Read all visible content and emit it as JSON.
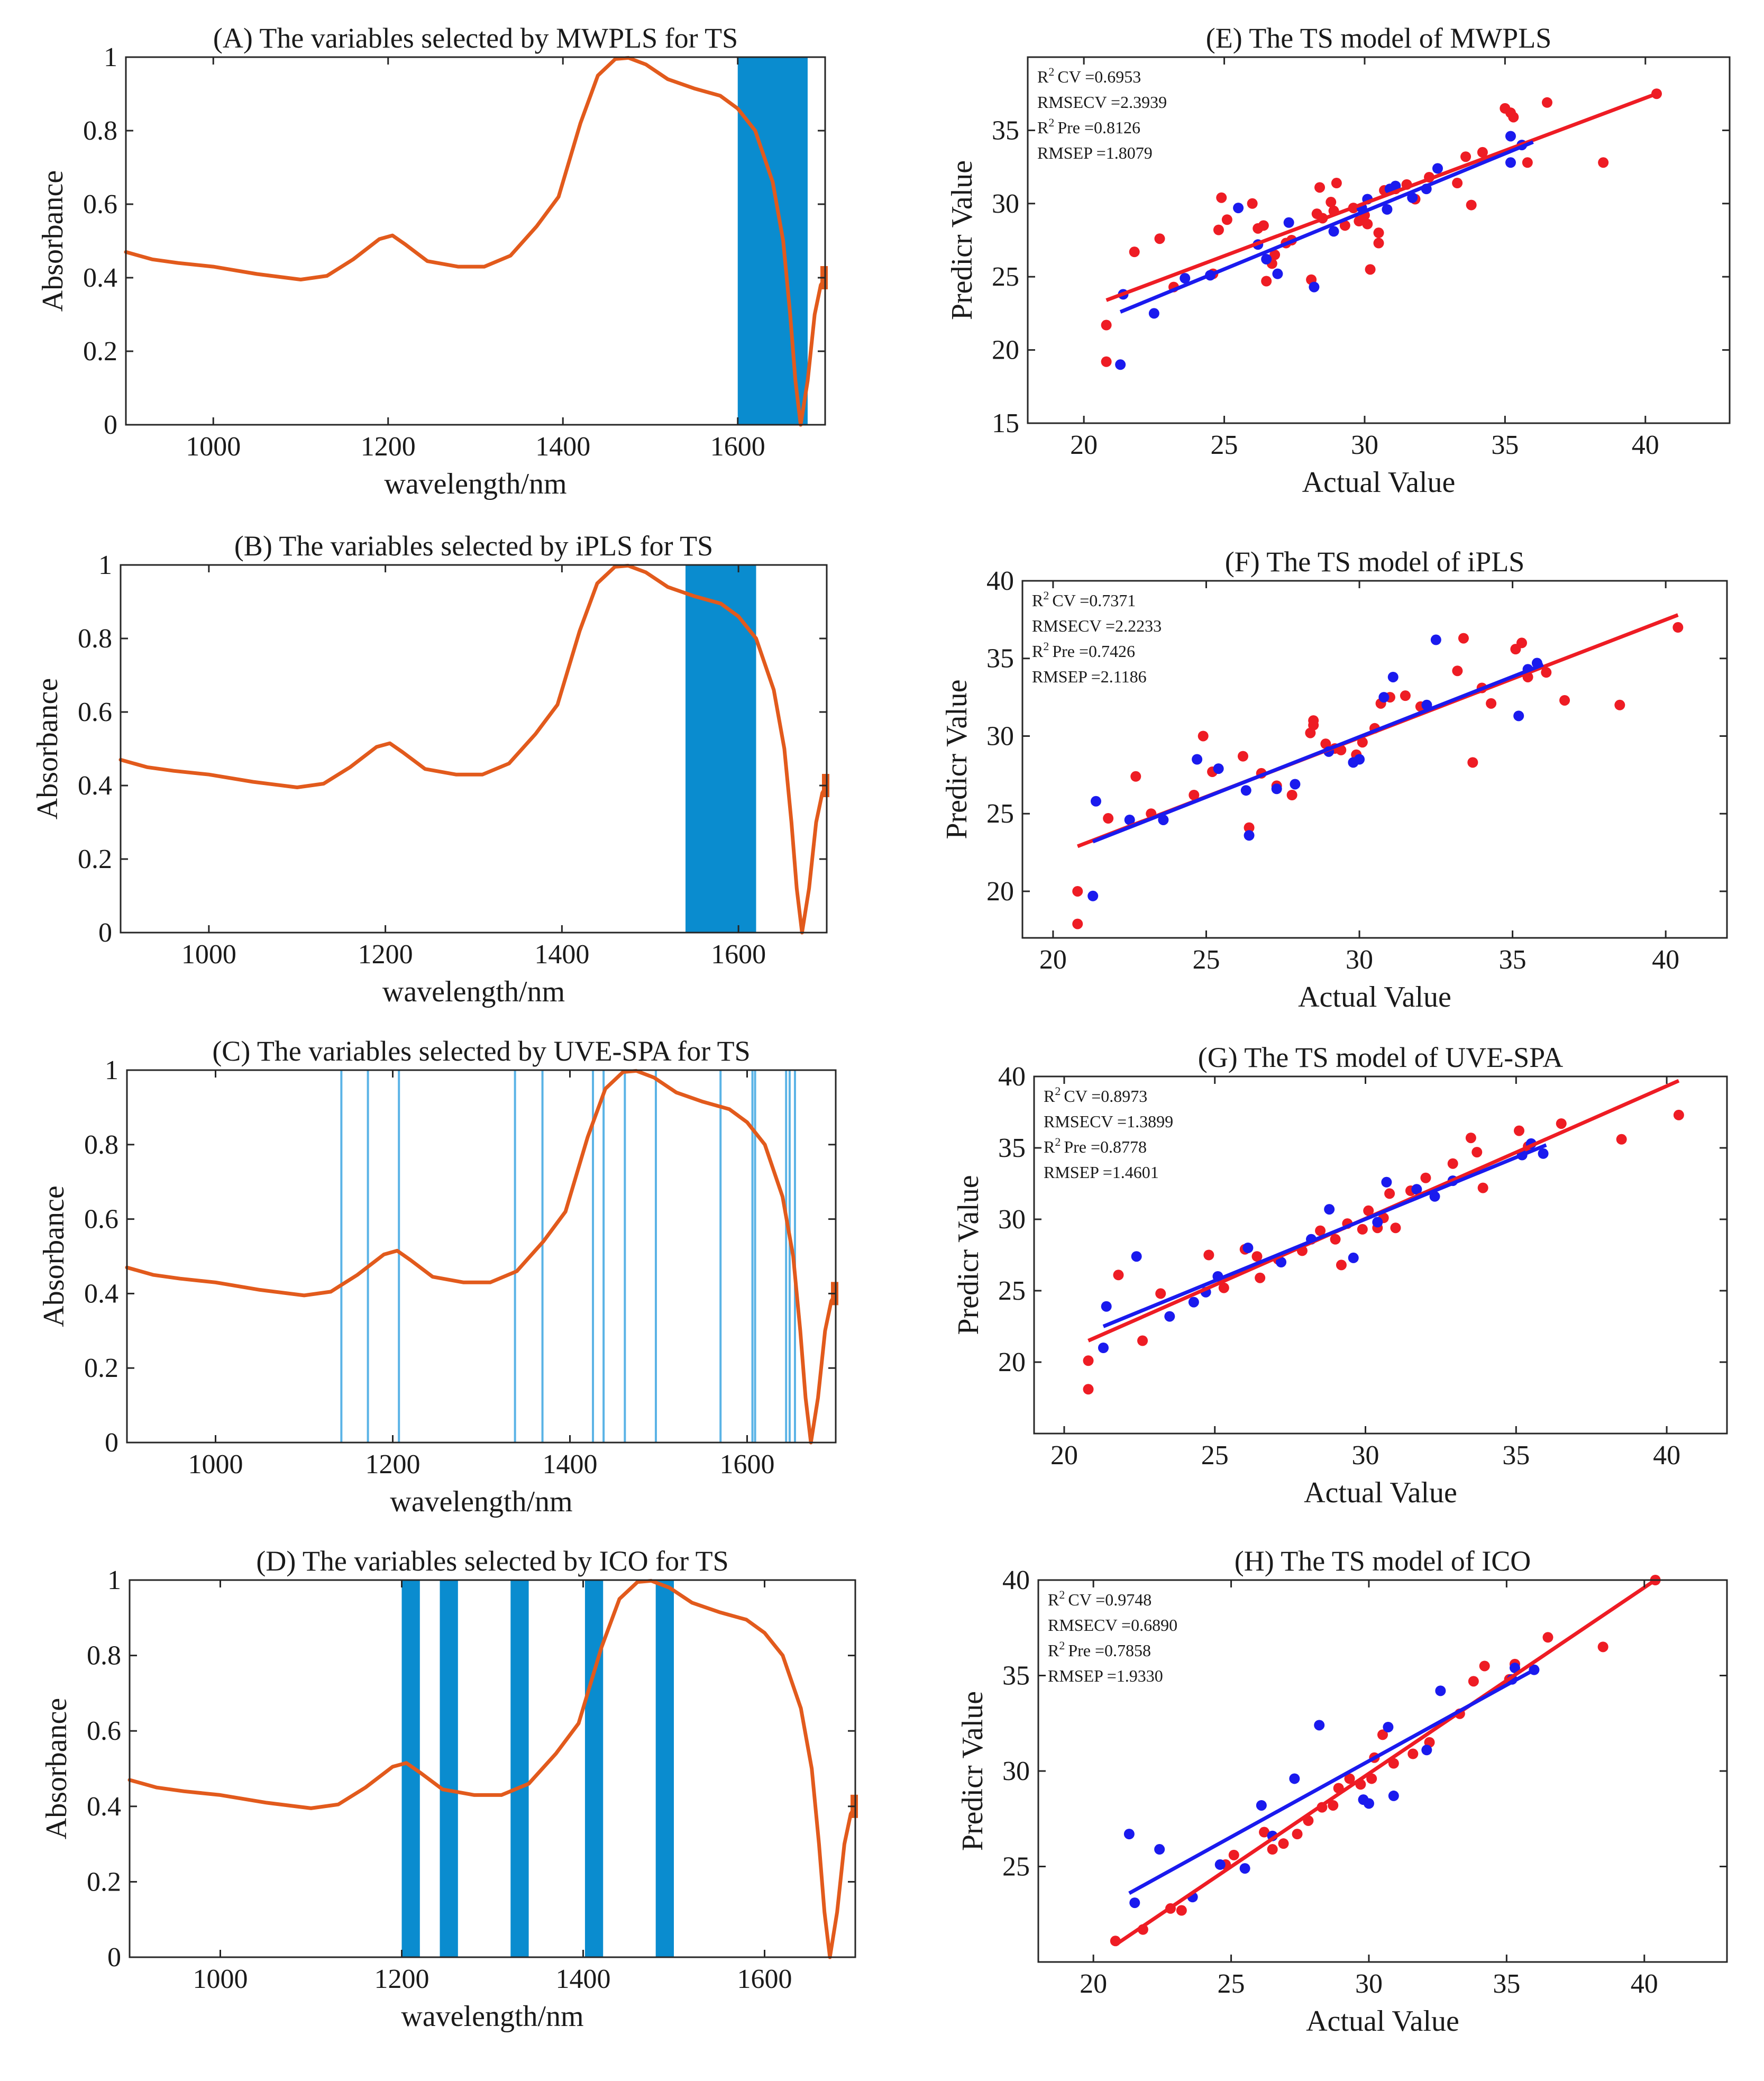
{
  "chart_data": [
    {
      "id": "A",
      "type": "line",
      "title": "(A) The variables selected by MWPLS for TS",
      "xlabel": "wavelength/nm",
      "ylabel": "Absorbance",
      "xlim": [
        900,
        1700
      ],
      "ylim": [
        0,
        1
      ],
      "xticks": [
        1000,
        1200,
        1400,
        1600
      ],
      "yticks": [
        0,
        0.2,
        0.4,
        0.6,
        0.8,
        1
      ],
      "ytick_labels": [
        "0",
        "0.2",
        "0.4",
        "0.6",
        "0.8",
        "1"
      ],
      "bands": [
        [
          1600,
          1680
        ]
      ],
      "lines": []
    },
    {
      "id": "B",
      "type": "line",
      "title": "(B) The variables selected by iPLS for TS",
      "xlabel": "wavelength/nm",
      "ylabel": "Absorbance",
      "xlim": [
        900,
        1700
      ],
      "ylim": [
        0,
        1
      ],
      "xticks": [
        1000,
        1200,
        1400,
        1600
      ],
      "yticks": [
        0,
        0.2,
        0.4,
        0.6,
        0.8,
        1
      ],
      "ytick_labels": [
        "0",
        "0.2",
        "0.4",
        "0.6",
        "0.8",
        "1"
      ],
      "bands": [
        [
          1540,
          1620
        ]
      ],
      "lines": []
    },
    {
      "id": "C",
      "type": "line",
      "title": "(C) The variables selected by UVE-SPA for TS",
      "xlabel": "wavelength/nm",
      "ylabel": "Absorbance",
      "xlim": [
        900,
        1700
      ],
      "ylim": [
        0,
        1
      ],
      "xticks": [
        1000,
        1200,
        1400,
        1600
      ],
      "yticks": [
        0,
        0.2,
        0.4,
        0.6,
        0.8,
        1
      ],
      "ytick_labels": [
        "0",
        "0.2",
        "0.4",
        "0.6",
        "0.8",
        "1"
      ],
      "bands": [],
      "lines": [
        1142,
        1172,
        1207,
        1338,
        1369,
        1426,
        1438,
        1462,
        1497,
        1570,
        1606,
        1609,
        1644,
        1648,
        1654
      ]
    },
    {
      "id": "D",
      "type": "line",
      "title": "(D) The variables selected by ICO for TS",
      "xlabel": "wavelength/nm",
      "ylabel": "Absorbance",
      "xlim": [
        900,
        1700
      ],
      "ylim": [
        0,
        1
      ],
      "xticks": [
        1000,
        1200,
        1400,
        1600
      ],
      "yticks": [
        0,
        0.2,
        0.4,
        0.6,
        0.8,
        1
      ],
      "ytick_labels": [
        "0",
        "0.2",
        "0.4",
        "0.6",
        "0.8",
        "1"
      ],
      "bands": [
        [
          1200,
          1220
        ],
        [
          1242,
          1262
        ],
        [
          1320,
          1340
        ],
        [
          1402,
          1422
        ],
        [
          1480,
          1500
        ]
      ],
      "lines": []
    },
    {
      "id": "E",
      "type": "scatter",
      "title": "(E) The TS model of MWPLS",
      "xlabel": "Actual Value",
      "ylabel": "Predicr Value",
      "xlim": [
        18,
        43
      ],
      "ylim": [
        15,
        40
      ],
      "xticks": [
        20,
        25,
        30,
        35,
        40
      ],
      "yticks": [
        15,
        20,
        25,
        30,
        35
      ],
      "stats": [
        "CV =0.6953",
        "RMSECV =2.3939",
        "Pre =0.8126",
        "RMSEP =1.8079"
      ],
      "fit_red": [
        [
          20.8,
          23.4
        ],
        [
          40.4,
          37.5
        ]
      ],
      "fit_blue": [
        [
          21.3,
          22.6
        ],
        [
          36,
          34.2
        ]
      ],
      "red": [
        [
          20.8,
          21.7
        ],
        [
          20.8,
          19.2
        ],
        [
          21.8,
          26.7
        ],
        [
          22.7,
          27.6
        ],
        [
          23.2,
          24.3
        ],
        [
          24.6,
          25.2
        ],
        [
          24.8,
          28.2
        ],
        [
          24.9,
          30.4
        ],
        [
          25.1,
          28.9
        ],
        [
          26,
          30
        ],
        [
          26.2,
          28.3
        ],
        [
          26.4,
          28.5
        ],
        [
          26.5,
          24.7
        ],
        [
          26.7,
          25.9
        ],
        [
          26.8,
          26.5
        ],
        [
          27.2,
          27.3
        ],
        [
          27.4,
          27.5
        ],
        [
          28.1,
          24.8
        ],
        [
          28.3,
          29.3
        ],
        [
          28.4,
          31.1
        ],
        [
          28.5,
          29
        ],
        [
          28.8,
          30.1
        ],
        [
          28.9,
          29.5
        ],
        [
          29,
          31.4
        ],
        [
          29.3,
          28.5
        ],
        [
          29.6,
          29.7
        ],
        [
          29.8,
          28.8
        ],
        [
          30,
          29.2
        ],
        [
          30.1,
          28.6
        ],
        [
          30.2,
          25.5
        ],
        [
          30.5,
          28
        ],
        [
          30.5,
          27.3
        ],
        [
          30.7,
          30.9
        ],
        [
          31.1,
          31
        ],
        [
          31.5,
          31.3
        ],
        [
          31.8,
          30.3
        ],
        [
          32.3,
          31.8
        ],
        [
          33.3,
          31.4
        ],
        [
          33.6,
          33.2
        ],
        [
          33.8,
          29.9
        ],
        [
          34.2,
          33.5
        ],
        [
          35,
          36.5
        ],
        [
          35.2,
          36.2
        ],
        [
          35.3,
          35.9
        ],
        [
          35.8,
          32.8
        ],
        [
          36.5,
          36.9
        ],
        [
          38.5,
          32.8
        ],
        [
          40.4,
          37.5
        ]
      ],
      "blue": [
        [
          21.3,
          19
        ],
        [
          21.4,
          23.8
        ],
        [
          22.5,
          22.5
        ],
        [
          23.6,
          24.9
        ],
        [
          24.5,
          25.1
        ],
        [
          25.5,
          29.7
        ],
        [
          26.2,
          27.2
        ],
        [
          26.5,
          26.2
        ],
        [
          26.9,
          25.2
        ],
        [
          27.3,
          28.7
        ],
        [
          28.2,
          24.3
        ],
        [
          28.9,
          28.1
        ],
        [
          29.9,
          29.7
        ],
        [
          30.1,
          30.3
        ],
        [
          30.8,
          29.6
        ],
        [
          30.9,
          31
        ],
        [
          31.1,
          31.2
        ],
        [
          31.7,
          30.4
        ],
        [
          32.2,
          31
        ],
        [
          32.6,
          32.4
        ],
        [
          35.2,
          34.6
        ],
        [
          35.2,
          32.8
        ],
        [
          35.6,
          34
        ]
      ]
    },
    {
      "id": "F",
      "type": "scatter",
      "title": "(F) The TS model of iPLS",
      "xlabel": "Actual Value",
      "ylabel": "Predicr Value",
      "xlim": [
        19,
        42
      ],
      "ylim": [
        17,
        40
      ],
      "xticks": [
        20,
        25,
        30,
        35,
        40
      ],
      "yticks": [
        20,
        25,
        30,
        35,
        40
      ],
      "stats": [
        "CV =0.7371",
        "RMSECV =2.2233",
        "Pre =0.7426",
        "RMSEP =2.1186"
      ],
      "fit_red": [
        [
          20.8,
          22.9
        ],
        [
          40.4,
          37.8
        ]
      ],
      "fit_blue": [
        [
          21.3,
          23.2
        ],
        [
          36,
          34.6
        ]
      ],
      "red": [
        [
          20.8,
          20
        ],
        [
          20.8,
          17.9
        ],
        [
          21.8,
          24.7
        ],
        [
          22.7,
          27.4
        ],
        [
          23.2,
          25
        ],
        [
          24.6,
          26.2
        ],
        [
          24.9,
          30
        ],
        [
          25.2,
          27.7
        ],
        [
          26.2,
          28.7
        ],
        [
          26.4,
          24.1
        ],
        [
          26.8,
          27.6
        ],
        [
          27.3,
          26.8
        ],
        [
          27.8,
          26.2
        ],
        [
          28.4,
          30.2
        ],
        [
          28.5,
          31
        ],
        [
          28.5,
          30.7
        ],
        [
          28.9,
          29.5
        ],
        [
          29.2,
          29.2
        ],
        [
          29.4,
          29.1
        ],
        [
          29.9,
          28.8
        ],
        [
          30.1,
          29.6
        ],
        [
          30.5,
          30.5
        ],
        [
          30.7,
          32.1
        ],
        [
          31,
          32.5
        ],
        [
          31.5,
          32.6
        ],
        [
          32,
          31.9
        ],
        [
          33.2,
          34.2
        ],
        [
          33.4,
          36.3
        ],
        [
          33.7,
          28.3
        ],
        [
          34,
          33.1
        ],
        [
          34.3,
          32.1
        ],
        [
          35.1,
          35.6
        ],
        [
          35.3,
          36
        ],
        [
          35.5,
          33.8
        ],
        [
          36.1,
          34.1
        ],
        [
          36.7,
          32.3
        ],
        [
          38.5,
          32
        ],
        [
          40.4,
          37
        ]
      ],
      "blue": [
        [
          21.3,
          19.7
        ],
        [
          21.4,
          25.8
        ],
        [
          22.5,
          24.6
        ],
        [
          23.6,
          24.6
        ],
        [
          24.7,
          28.5
        ],
        [
          25.4,
          27.9
        ],
        [
          26.3,
          26.5
        ],
        [
          26.4,
          23.6
        ],
        [
          27.3,
          26.6
        ],
        [
          27.9,
          26.9
        ],
        [
          29,
          29
        ],
        [
          29.8,
          28.3
        ],
        [
          30,
          28.5
        ],
        [
          30.8,
          32.5
        ],
        [
          31.1,
          33.8
        ],
        [
          32.2,
          32
        ],
        [
          32.5,
          36.2
        ],
        [
          35.2,
          31.3
        ],
        [
          35.5,
          34.3
        ],
        [
          35.8,
          34.7
        ]
      ]
    },
    {
      "id": "G",
      "type": "scatter",
      "title": "(G) The TS model of UVE-SPA",
      "xlabel": "Actual Value",
      "ylabel": "Predicr Value",
      "xlim": [
        19,
        42
      ],
      "ylim": [
        15,
        40
      ],
      "xticks": [
        20,
        25,
        30,
        35,
        40
      ],
      "yticks": [
        20,
        25,
        30,
        35,
        40
      ],
      "stats": [
        "CV =0.8973",
        "RMSECV =1.3899",
        "Pre =0.8778",
        "RMSEP =1.4601"
      ],
      "fit_red": [
        [
          20.8,
          21.5
        ],
        [
          40.4,
          39.7
        ]
      ],
      "fit_blue": [
        [
          21.3,
          22.5
        ],
        [
          36,
          35.2
        ]
      ],
      "red": [
        [
          20.8,
          20.1
        ],
        [
          20.8,
          18.1
        ],
        [
          21.8,
          26.1
        ],
        [
          22.6,
          21.5
        ],
        [
          23.2,
          24.8
        ],
        [
          24.8,
          27.5
        ],
        [
          25.3,
          25.2
        ],
        [
          26,
          27.9
        ],
        [
          26.4,
          27.4
        ],
        [
          26.5,
          25.9
        ],
        [
          27.1,
          27.2
        ],
        [
          27.9,
          27.8
        ],
        [
          28.5,
          29.2
        ],
        [
          29,
          28.6
        ],
        [
          29.2,
          26.8
        ],
        [
          29.4,
          29.7
        ],
        [
          29.9,
          29.3
        ],
        [
          30.1,
          30.6
        ],
        [
          30.4,
          29.4
        ],
        [
          30.6,
          30.1
        ],
        [
          30.8,
          31.8
        ],
        [
          31,
          29.4
        ],
        [
          31.5,
          32
        ],
        [
          32,
          32.9
        ],
        [
          32.9,
          33.9
        ],
        [
          33.5,
          35.7
        ],
        [
          33.7,
          34.7
        ],
        [
          33.9,
          32.2
        ],
        [
          35.1,
          36.2
        ],
        [
          35.4,
          35.1
        ],
        [
          36.5,
          36.7
        ],
        [
          38.5,
          35.6
        ],
        [
          40.4,
          37.3
        ]
      ],
      "blue": [
        [
          21.3,
          21
        ],
        [
          21.4,
          23.9
        ],
        [
          22.4,
          27.4
        ],
        [
          23.5,
          23.2
        ],
        [
          24.3,
          24.2
        ],
        [
          24.7,
          24.9
        ],
        [
          25.1,
          26
        ],
        [
          26.1,
          28
        ],
        [
          27.2,
          27
        ],
        [
          28.2,
          28.6
        ],
        [
          28.8,
          30.7
        ],
        [
          29.6,
          27.3
        ],
        [
          30.4,
          29.8
        ],
        [
          30.7,
          32.6
        ],
        [
          31.7,
          32.1
        ],
        [
          32.3,
          31.6
        ],
        [
          32.9,
          32.7
        ],
        [
          35.2,
          34.5
        ],
        [
          35.5,
          35.3
        ],
        [
          35.9,
          34.6
        ]
      ]
    },
    {
      "id": "H",
      "type": "scatter",
      "title": "(H) The TS model of ICO",
      "xlabel": "Actual Value",
      "ylabel": "Predicr Value",
      "xlim": [
        18,
        43
      ],
      "ylim": [
        20,
        40
      ],
      "xticks": [
        20,
        25,
        30,
        35,
        40
      ],
      "yticks": [
        25,
        30,
        35,
        40
      ],
      "stats": [
        "CV =0.9748",
        "RMSECV =0.6890",
        "Pre =0.7858",
        "RMSEP =1.9330"
      ],
      "fit_red": [
        [
          20.8,
          20.9
        ],
        [
          40.4,
          40
        ]
      ],
      "fit_blue": [
        [
          21.3,
          23.6
        ],
        [
          36,
          35.3
        ]
      ],
      "red": [
        [
          20.8,
          21.1
        ],
        [
          21.8,
          21.7
        ],
        [
          22.8,
          22.8
        ],
        [
          23.2,
          22.7
        ],
        [
          24.8,
          25.1
        ],
        [
          25.1,
          25.6
        ],
        [
          26.2,
          26.8
        ],
        [
          26.5,
          25.9
        ],
        [
          26.9,
          26.2
        ],
        [
          27.4,
          26.7
        ],
        [
          27.8,
          27.4
        ],
        [
          28.3,
          28.1
        ],
        [
          28.7,
          28.2
        ],
        [
          28.9,
          29.1
        ],
        [
          29.3,
          29.6
        ],
        [
          29.7,
          29.3
        ],
        [
          30.1,
          29.6
        ],
        [
          30.2,
          30.7
        ],
        [
          30.5,
          31.9
        ],
        [
          30.9,
          30.4
        ],
        [
          31.6,
          30.9
        ],
        [
          32.2,
          31.5
        ],
        [
          33.3,
          33
        ],
        [
          33.8,
          34.7
        ],
        [
          34.2,
          35.5
        ],
        [
          35.1,
          34.8
        ],
        [
          35.3,
          35.6
        ],
        [
          36.5,
          37
        ],
        [
          38.5,
          36.5
        ],
        [
          40.4,
          40
        ]
      ],
      "blue": [
        [
          21.3,
          26.7
        ],
        [
          21.5,
          23.1
        ],
        [
          22.4,
          25.9
        ],
        [
          23.6,
          23.4
        ],
        [
          24.6,
          25.1
        ],
        [
          25.5,
          24.9
        ],
        [
          26.1,
          28.2
        ],
        [
          26.5,
          26.6
        ],
        [
          27.3,
          29.6
        ],
        [
          28.2,
          32.4
        ],
        [
          29.8,
          28.5
        ],
        [
          30,
          28.3
        ],
        [
          30.7,
          32.3
        ],
        [
          30.9,
          28.7
        ],
        [
          32.1,
          31.1
        ],
        [
          32.6,
          34.2
        ],
        [
          35.2,
          34.8
        ],
        [
          35.3,
          35.4
        ],
        [
          36,
          35.3
        ]
      ]
    }
  ]
}
